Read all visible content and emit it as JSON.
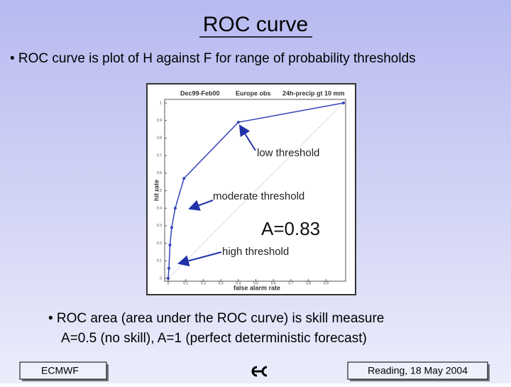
{
  "slide": {
    "title": "ROC curve",
    "bullet": "• ROC curve is plot of H against F for range of probability thresholds",
    "notes": [
      "• ROC area (area under the ROC curve) is skill measure",
      "A=0.5 (no skill), A=1 (perfect deterministic forecast)"
    ],
    "footer": {
      "left": "ECMWF",
      "right": "Reading, 18 May 2004"
    }
  },
  "chart_data": {
    "type": "line",
    "header": [
      "Dec99-Feb00",
      "Europe obs",
      "24h-precip gt 10 mm"
    ],
    "xlabel": "false alarm rate",
    "ylabel": "hit rate",
    "x": [
      0,
      0.004,
      0.01,
      0.02,
      0.04,
      0.09,
      0.4,
      1
    ],
    "series": [
      {
        "name": "ROC",
        "color": "#3344bb",
        "values": [
          0,
          0.057,
          0.19,
          0.29,
          0.4,
          0.57,
          0.89,
          1
        ]
      }
    ],
    "xlim": [
      0,
      1
    ],
    "ylim": [
      0,
      1
    ],
    "xticks": [
      0,
      0.1,
      0.2,
      0.3,
      0.4,
      0.5,
      0.6,
      0.7,
      0.8,
      0.9
    ],
    "yticks": [
      0,
      0.1,
      0.2,
      0.3,
      0.4,
      0.5,
      0.6,
      0.7,
      0.8,
      0.9,
      1
    ],
    "diagonal": true,
    "annotations": [
      "low threshold",
      "moderate threshold",
      "A=0.83",
      "high threshold"
    ]
  }
}
